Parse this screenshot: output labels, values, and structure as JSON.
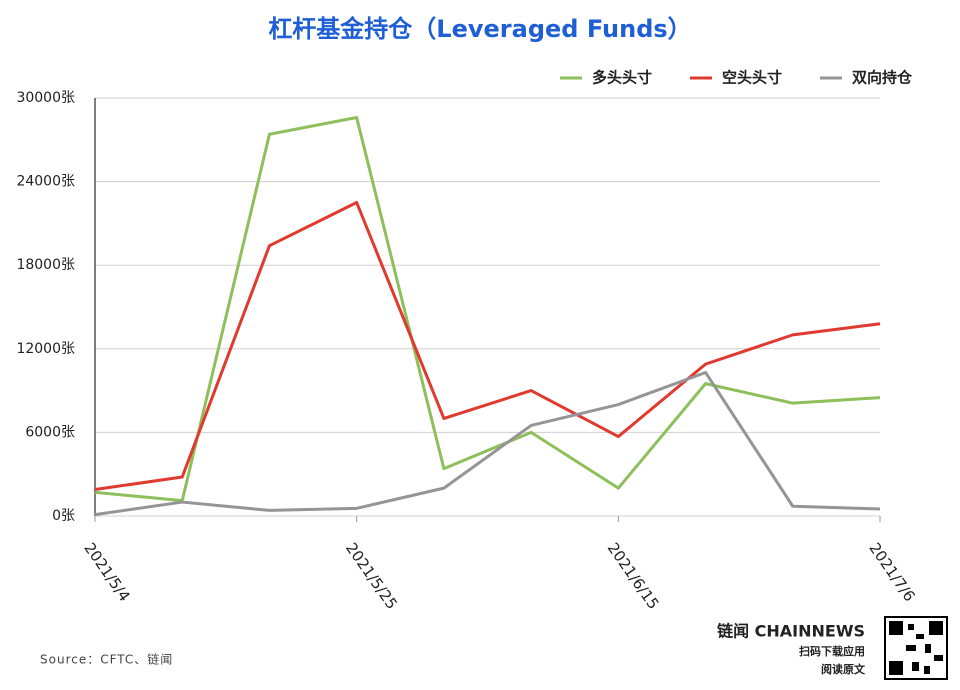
{
  "chart_data": {
    "type": "line",
    "title": "杠杆基金持仓（Leveraged Funds）",
    "categories": [
      "2021/5/4",
      null,
      null,
      "2021/5/25",
      null,
      null,
      "2021/6/15",
      null,
      null,
      "2021/7/6"
    ],
    "series": [
      {
        "name": "多头头寸",
        "color": "#8dc05a",
        "values": [
          1700,
          1100,
          27400,
          28600,
          3400,
          6000,
          2000,
          9500,
          8100,
          8500
        ]
      },
      {
        "name": "空头头寸",
        "color": "#e03a2f",
        "values": [
          1900,
          2800,
          19400,
          22500,
          7000,
          9000,
          5700,
          10900,
          13000,
          13800
        ]
      },
      {
        "name": "双向持仓",
        "color": "#959595",
        "values": [
          100,
          1000,
          400,
          550,
          2000,
          6500,
          8000,
          10300,
          700,
          500
        ]
      }
    ],
    "ylim": [
      0,
      30000
    ],
    "yticks": [
      {
        "value": 0,
        "label": "0张"
      },
      {
        "value": 6000,
        "label": "6000张"
      },
      {
        "value": 12000,
        "label": "12000张"
      },
      {
        "value": 18000,
        "label": "18000张"
      },
      {
        "value": 24000,
        "label": "24000张"
      },
      {
        "value": 30000,
        "label": "30000张"
      }
    ],
    "grid": true,
    "legend": "top-right",
    "source": "Source：CFTC、链闻",
    "brand": "链闻 CHAINNEWS",
    "brand_lines": [
      "扫码下载应用",
      "阅读原文"
    ]
  }
}
